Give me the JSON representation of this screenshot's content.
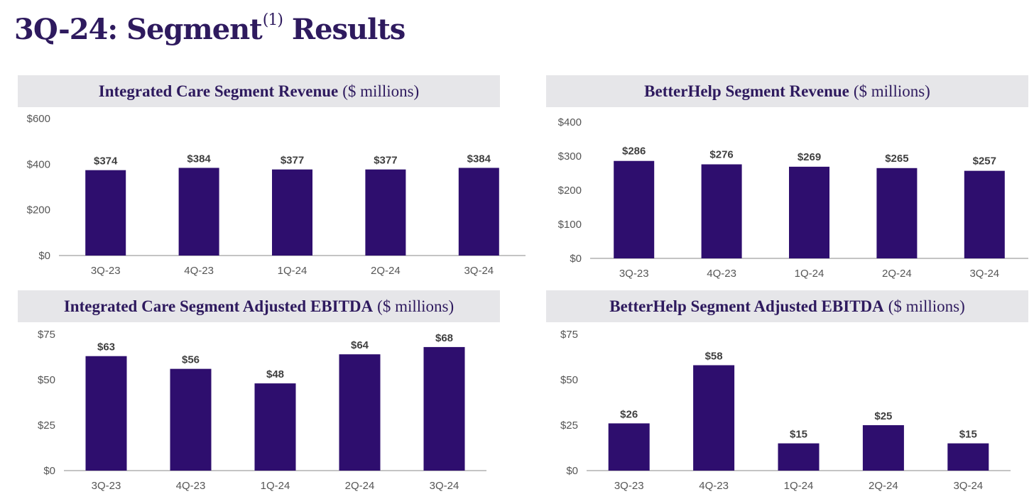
{
  "page": {
    "title_main": "3Q-24: Segment",
    "title_sup": "(1)",
    "title_end": " Results"
  },
  "colors": {
    "bar": "#2e0e6e",
    "title": "#2e1a5e",
    "header_bg": "#e6e6e9"
  },
  "chart_data": [
    {
      "type": "bar",
      "title": "Integrated Care Segment Revenue",
      "unit": "($ millions)",
      "categories": [
        "3Q-23",
        "4Q-23",
        "1Q-24",
        "2Q-24",
        "3Q-24"
      ],
      "values": [
        374,
        384,
        377,
        377,
        384
      ],
      "value_labels": [
        "$374",
        "$384",
        "$377",
        "$377",
        "$384"
      ],
      "yticks": [
        0,
        200,
        400,
        600
      ],
      "ytick_labels": [
        "$0",
        "$200",
        "$400",
        "$600"
      ],
      "ylim": [
        0,
        600
      ],
      "grid": false,
      "legend": "none"
    },
    {
      "type": "bar",
      "title": "BetterHelp Segment Revenue",
      "unit": "($ millions)",
      "categories": [
        "3Q-23",
        "4Q-23",
        "1Q-24",
        "2Q-24",
        "3Q-24"
      ],
      "values": [
        286,
        276,
        269,
        265,
        257
      ],
      "value_labels": [
        "$286",
        "$276",
        "$269",
        "$265",
        "$257"
      ],
      "yticks": [
        0,
        100,
        200,
        300,
        400
      ],
      "ytick_labels": [
        "$0",
        "$100",
        "$200",
        "$300",
        "$400"
      ],
      "ylim": [
        0,
        400
      ],
      "grid": false,
      "legend": "none"
    },
    {
      "type": "bar",
      "title": "Integrated Care Segment Adjusted EBITDA",
      "unit": "($ millions)",
      "categories": [
        "3Q-23",
        "4Q-23",
        "1Q-24",
        "2Q-24",
        "3Q-24"
      ],
      "values": [
        63,
        56,
        48,
        64,
        68
      ],
      "value_labels": [
        "$63",
        "$56",
        "$48",
        "$64",
        "$68"
      ],
      "yticks": [
        0,
        25,
        50,
        75
      ],
      "ytick_labels": [
        "$0",
        "$25",
        "$50",
        "$75"
      ],
      "ylim": [
        0,
        75
      ],
      "grid": false,
      "legend": "none"
    },
    {
      "type": "bar",
      "title": "BetterHelp Segment Adjusted EBITDA",
      "unit": "($ millions)",
      "categories": [
        "3Q-23",
        "4Q-23",
        "1Q-24",
        "2Q-24",
        "3Q-24"
      ],
      "values": [
        26,
        58,
        15,
        25,
        15
      ],
      "value_labels": [
        "$26",
        "$58",
        "$15",
        "$25",
        "$15"
      ],
      "yticks": [
        0,
        25,
        50,
        75
      ],
      "ytick_labels": [
        "$0",
        "$25",
        "$50",
        "$75"
      ],
      "ylim": [
        0,
        75
      ],
      "grid": false,
      "legend": "none"
    }
  ]
}
